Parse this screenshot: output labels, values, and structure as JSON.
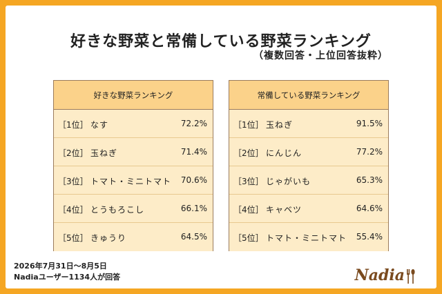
{
  "title": "好きな野菜と常備している野菜ランキング",
  "subtitle": "（複数回答・上位回答抜粋）",
  "tables": [
    {
      "header": "好きな野菜ランキング",
      "rows": [
        {
          "rank": "［1位］",
          "name": "なす",
          "percent": "72.2%"
        },
        {
          "rank": "［2位］",
          "name": "玉ねぎ",
          "percent": "71.4%"
        },
        {
          "rank": "［3位］",
          "name": "トマト・ミニトマト",
          "percent": "70.6%"
        },
        {
          "rank": "［4位］",
          "name": "とうもろこし",
          "percent": "66.1%"
        },
        {
          "rank": "［5位］",
          "name": "きゅうり",
          "percent": "64.5%"
        }
      ]
    },
    {
      "header": "常備している野菜ランキング",
      "rows": [
        {
          "rank": "［1位］",
          "name": "玉ねぎ",
          "percent": "91.5%"
        },
        {
          "rank": "［2位］",
          "name": "にんじん",
          "percent": "77.2%"
        },
        {
          "rank": "［3位］",
          "name": "じゃがいも",
          "percent": "65.3%"
        },
        {
          "rank": "［4位］",
          "name": "キャベツ",
          "percent": "64.6%"
        },
        {
          "rank": "［5位］",
          "name": "トマト・ミニトマト",
          "percent": "55.4%"
        }
      ]
    }
  ],
  "footer": {
    "period": "2026年7月31日〜8月5日",
    "respondents": "Nadiaユーザー1134人が回答"
  },
  "logo": {
    "text": "Nadia",
    "icon": "fork-spoon-icon"
  },
  "colors": {
    "frame": "#f5a623",
    "header_bg": "#fbd28a",
    "row_bg": "#fdecc8",
    "border": "#9a7b5c",
    "logo": "#7a4a1e"
  }
}
